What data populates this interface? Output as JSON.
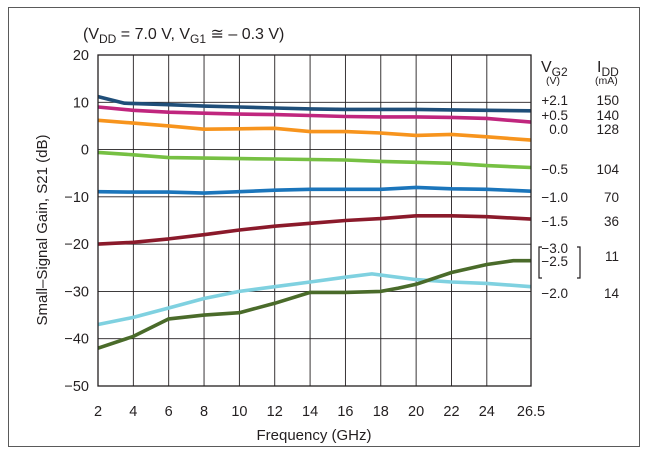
{
  "chart_data": {
    "type": "line",
    "condition": {
      "prefix": "(V",
      "vdd_sub": "DD",
      "vdd_value": " = 7.0 V,  V",
      "vg1_sub": "G1",
      "vg1_value": " ≅ – 0.3 V)"
    },
    "xlabel": "Frequency (GHz)",
    "ylabel": "Small–Signal Gain, S21 (dB)",
    "xlim": [
      2,
      26.5
    ],
    "ylim": [
      -50,
      20
    ],
    "xticks": [
      "2",
      "4",
      "6",
      "8",
      "10",
      "12",
      "14",
      "16",
      "18",
      "20",
      "22",
      "24",
      "26.5"
    ],
    "yticks": [
      "20",
      "10",
      "0",
      "−10",
      "−20",
      "−30",
      "−40",
      "−50"
    ],
    "grid": true,
    "legend_header": {
      "vg2_label": "V",
      "vg2_sub": "G2",
      "vg2_unit": "(V)",
      "idd_label": "I",
      "idd_sub": "DD",
      "idd_unit": "(mA)"
    },
    "legend_rows": [
      {
        "vg2": "+2.1",
        "idd": "150"
      },
      {
        "vg2": "+0.5",
        "idd": "140"
      },
      {
        "vg2": "0.0",
        "idd": "128"
      },
      {
        "vg2": "−0.5",
        "idd": "104"
      },
      {
        "vg2": "−1.0",
        "idd": "70"
      },
      {
        "vg2": "−1.5",
        "idd": "36"
      },
      {
        "vg2": "−3.0",
        "idd": "11"
      },
      {
        "vg2": "−2.5",
        "idd": ""
      },
      {
        "vg2": "−2.0",
        "idd": "14"
      }
    ],
    "series": [
      {
        "color": "#1f4e79",
        "x": [
          2,
          3.5,
          6,
          8,
          10,
          12,
          14,
          16,
          18,
          20,
          22,
          24,
          26.5
        ],
        "y": [
          11.2,
          9.8,
          9.5,
          9.2,
          9.0,
          8.8,
          8.6,
          8.5,
          8.5,
          8.5,
          8.4,
          8.3,
          8.2
        ]
      },
      {
        "color": "#c0267e",
        "x": [
          2,
          4,
          6,
          8,
          10,
          12,
          14,
          16,
          18,
          20,
          22,
          24,
          26.5
        ],
        "y": [
          9.0,
          8.3,
          7.9,
          7.7,
          7.5,
          7.4,
          7.2,
          7.0,
          6.9,
          6.9,
          6.8,
          6.6,
          5.8
        ]
      },
      {
        "color": "#f7941d",
        "x": [
          2,
          4,
          6,
          8,
          10,
          12,
          14,
          16,
          18,
          20,
          22,
          24,
          26.5
        ],
        "y": [
          6.2,
          5.6,
          5.0,
          4.3,
          4.4,
          4.5,
          3.8,
          3.8,
          3.5,
          3.0,
          3.2,
          2.7,
          2.0
        ]
      },
      {
        "color": "#76c043",
        "x": [
          2,
          4,
          6,
          8,
          10,
          12,
          14,
          16,
          18,
          20,
          22,
          24,
          26.5
        ],
        "y": [
          -0.6,
          -1.1,
          -1.7,
          -1.8,
          -1.9,
          -2.0,
          -2.1,
          -2.2,
          -2.5,
          -2.7,
          -2.9,
          -3.4,
          -3.8
        ]
      },
      {
        "color": "#1b75bb",
        "x": [
          2,
          4,
          6,
          8,
          10,
          12,
          14,
          16,
          18,
          20,
          22,
          24,
          26.5
        ],
        "y": [
          -8.9,
          -9.0,
          -9.0,
          -9.2,
          -8.9,
          -8.6,
          -8.4,
          -8.4,
          -8.4,
          -8.0,
          -8.3,
          -8.4,
          -8.8
        ]
      },
      {
        "color": "#8b1a2b",
        "x": [
          2,
          4,
          6,
          8,
          10,
          12,
          14,
          16,
          18,
          20,
          22,
          24,
          26.5
        ],
        "y": [
          -20.0,
          -19.6,
          -18.9,
          -18.0,
          -17.0,
          -16.2,
          -15.6,
          -15.0,
          -14.6,
          -14.0,
          -14.0,
          -14.2,
          -14.7
        ]
      },
      {
        "color": "#7fd1e0",
        "x": [
          2,
          4,
          6,
          8,
          10,
          12,
          14,
          16,
          17.5,
          20,
          22,
          24,
          26.5
        ],
        "y": [
          -37.0,
          -35.5,
          -33.5,
          -31.5,
          -30.0,
          -29.0,
          -28.0,
          -27.0,
          -26.3,
          -27.5,
          -28.0,
          -28.3,
          -29.0
        ]
      },
      {
        "color": "#4a6b2a",
        "x": [
          2,
          4,
          6,
          8,
          10,
          12,
          14,
          16,
          18,
          19,
          20,
          22,
          24,
          25.5,
          26.5
        ],
        "y": [
          -42.0,
          -39.5,
          -35.8,
          -35.0,
          -34.5,
          -32.5,
          -30.2,
          -30.2,
          -30.0,
          -29.3,
          -28.5,
          -26.0,
          -24.3,
          -23.5,
          -23.5
        ]
      }
    ]
  }
}
